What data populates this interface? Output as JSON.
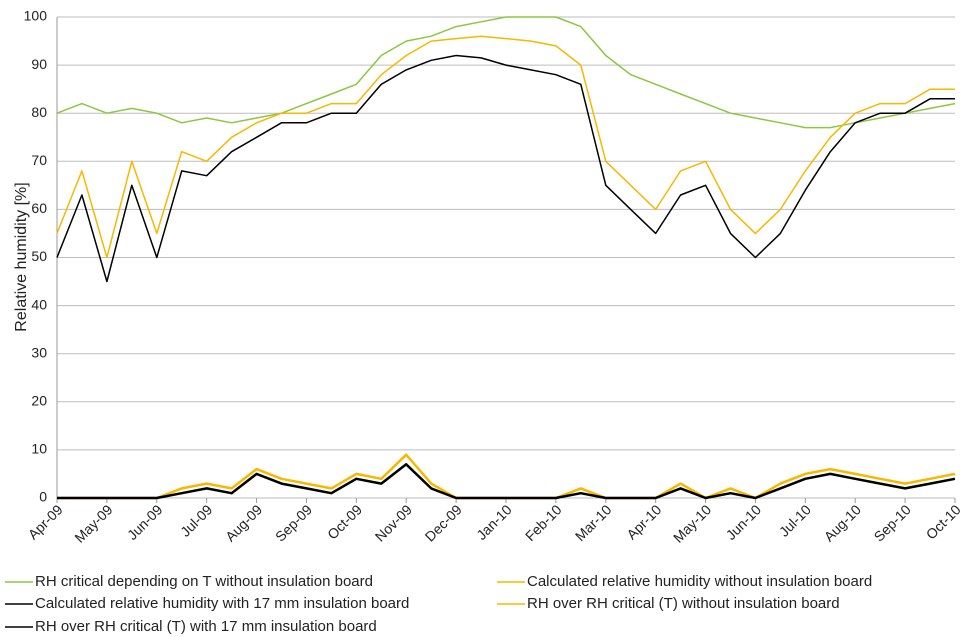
{
  "chart_data": {
    "type": "line",
    "y_label": "Relative humidity [%]",
    "categories": [
      "Apr-09",
      null,
      "May-09",
      null,
      "Jun-09",
      null,
      "Jul-09",
      null,
      "Aug-09",
      null,
      "Sep-09",
      null,
      "Oct-09",
      null,
      "Nov-09",
      null,
      "Dec-09",
      null,
      "Jan-10",
      null,
      "Feb-10",
      null,
      "Mar-10",
      null,
      "Apr-10",
      null,
      "May-10",
      null,
      "Jun-10",
      null,
      "Jul-10",
      null,
      "Aug-10",
      null,
      "Sep-10",
      null,
      "Oct-10"
    ],
    "ylim": [
      0,
      100
    ],
    "yticks": [
      0,
      10,
      20,
      30,
      40,
      50,
      60,
      70,
      80,
      90,
      100
    ],
    "grid": true,
    "series": [
      {
        "name": "RH critical depending on T without insulation board",
        "color": "#8dc63f",
        "width": 1.5,
        "values": [
          80,
          82,
          80,
          81,
          80,
          78,
          79,
          78,
          79,
          80,
          82,
          84,
          86,
          92,
          95,
          96,
          98,
          99,
          100,
          100,
          100,
          98,
          92,
          88,
          86,
          84,
          82,
          80,
          79,
          78,
          77,
          77,
          78,
          79,
          80,
          81,
          82
        ]
      },
      {
        "name": "Calculated relative humidity without insulation board",
        "color": "#f6b800",
        "width": 1.5,
        "values": [
          55,
          68,
          50,
          70,
          55,
          72,
          70,
          75,
          78,
          80,
          80,
          82,
          82,
          88,
          92,
          95,
          95.5,
          96,
          95.5,
          95,
          94,
          90,
          70,
          65,
          60,
          68,
          70,
          60,
          55,
          60,
          68,
          75,
          80,
          82,
          82,
          85,
          85
        ]
      },
      {
        "name": "Calculated relative humidity with 17 mm insulation board",
        "color": "#000000",
        "width": 1.5,
        "values": [
          50,
          63,
          45,
          65,
          50,
          68,
          67,
          72,
          75,
          78,
          78,
          80,
          80,
          86,
          89,
          91,
          92,
          91.5,
          90,
          89,
          88,
          86,
          65,
          60,
          55,
          63,
          65,
          55,
          50,
          55,
          64,
          72,
          78,
          80,
          80,
          83,
          83
        ]
      },
      {
        "name": "RH over RH critical (T) without insulation board",
        "color": "#f6b800",
        "width": 2.5,
        "values": [
          0,
          0,
          0,
          0,
          0,
          2,
          3,
          2,
          6,
          4,
          3,
          2,
          5,
          4,
          9,
          3,
          0,
          0,
          0,
          0,
          0,
          2,
          0,
          0,
          0,
          3,
          0,
          2,
          0,
          3,
          5,
          6,
          5,
          4,
          3,
          4,
          5
        ]
      },
      {
        "name": "RH over RH critical (T) with 17 mm insulation board",
        "color": "#000000",
        "width": 2.5,
        "values": [
          0,
          0,
          0,
          0,
          0,
          1,
          2,
          1,
          5,
          3,
          2,
          1,
          4,
          3,
          7,
          2,
          0,
          0,
          0,
          0,
          0,
          1,
          0,
          0,
          0,
          2,
          0,
          1,
          0,
          2,
          4,
          5,
          4,
          3,
          2,
          3,
          4
        ]
      }
    ]
  }
}
